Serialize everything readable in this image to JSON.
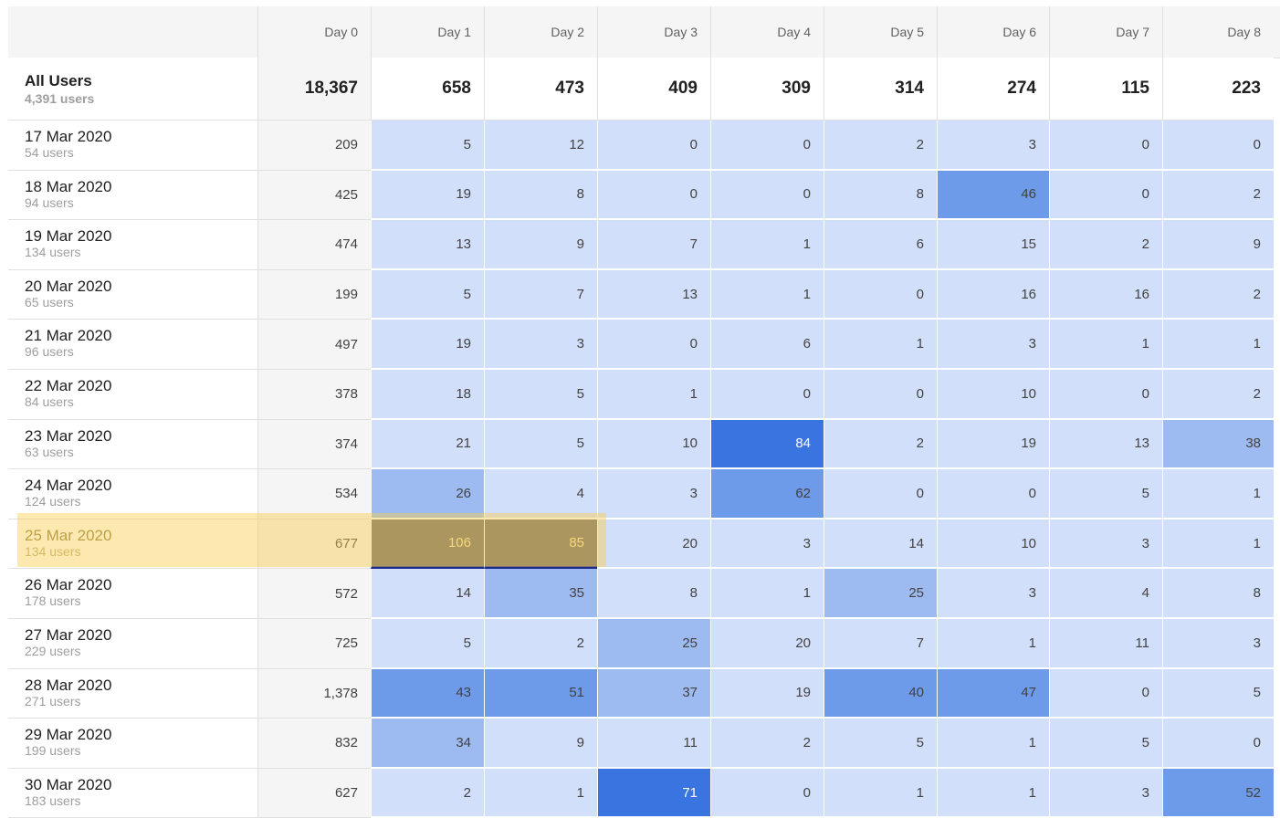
{
  "columns": [
    "Day 0",
    "Day 1",
    "Day 2",
    "Day 3",
    "Day 4",
    "Day 5",
    "Day 6",
    "Day 7",
    "Day 8"
  ],
  "all_users": {
    "label": "All Users",
    "sub": "4,391 users",
    "values": [
      "18,367",
      "658",
      "473",
      "409",
      "309",
      "314",
      "274",
      "115",
      "223"
    ]
  },
  "rows": [
    {
      "date": "17 Mar 2020",
      "users": "54 users",
      "values": [
        "209",
        "5",
        "12",
        "0",
        "0",
        "2",
        "3",
        "0",
        "0"
      ]
    },
    {
      "date": "18 Mar 2020",
      "users": "94 users",
      "values": [
        "425",
        "19",
        "8",
        "0",
        "0",
        "8",
        "46",
        "0",
        "2"
      ]
    },
    {
      "date": "19 Mar 2020",
      "users": "134 users",
      "values": [
        "474",
        "13",
        "9",
        "7",
        "1",
        "6",
        "15",
        "2",
        "9"
      ]
    },
    {
      "date": "20 Mar 2020",
      "users": "65 users",
      "values": [
        "199",
        "5",
        "7",
        "13",
        "1",
        "0",
        "16",
        "16",
        "2"
      ]
    },
    {
      "date": "21 Mar 2020",
      "users": "96 users",
      "values": [
        "497",
        "19",
        "3",
        "0",
        "6",
        "1",
        "3",
        "1",
        "1"
      ]
    },
    {
      "date": "22 Mar 2020",
      "users": "84 users",
      "values": [
        "378",
        "18",
        "5",
        "1",
        "0",
        "0",
        "10",
        "0",
        "2"
      ]
    },
    {
      "date": "23 Mar 2020",
      "users": "63 users",
      "values": [
        "374",
        "21",
        "5",
        "10",
        "84",
        "2",
        "19",
        "13",
        "38"
      ]
    },
    {
      "date": "24 Mar 2020",
      "users": "124 users",
      "values": [
        "534",
        "26",
        "4",
        "3",
        "62",
        "0",
        "0",
        "5",
        "1"
      ]
    },
    {
      "date": "25 Mar 2020",
      "users": "134 users",
      "values": [
        "677",
        "106",
        "85",
        "20",
        "3",
        "14",
        "10",
        "3",
        "1"
      ]
    },
    {
      "date": "26 Mar 2020",
      "users": "178 users",
      "values": [
        "572",
        "14",
        "35",
        "8",
        "1",
        "25",
        "3",
        "4",
        "8"
      ]
    },
    {
      "date": "27 Mar 2020",
      "users": "229 users",
      "values": [
        "725",
        "5",
        "2",
        "25",
        "20",
        "7",
        "1",
        "11",
        "3"
      ]
    },
    {
      "date": "28 Mar 2020",
      "users": "271 users",
      "values": [
        "1,378",
        "43",
        "51",
        "37",
        "19",
        "40",
        "47",
        "0",
        "5"
      ]
    },
    {
      "date": "29 Mar 2020",
      "users": "199 users",
      "values": [
        "832",
        "34",
        "9",
        "11",
        "2",
        "5",
        "1",
        "5",
        "0"
      ]
    },
    {
      "date": "30 Mar 2020",
      "users": "183 users",
      "values": [
        "627",
        "2",
        "1",
        "71",
        "0",
        "1",
        "1",
        "3",
        "52"
      ]
    }
  ],
  "colors": {
    "level_0": "#d2dffa",
    "level_1": "#9dbbf0",
    "level_2": "#6d9ae9",
    "level_3": "#3a74e0",
    "selected_dark": "#6b6870",
    "highlight": "#fde4a5"
  }
}
